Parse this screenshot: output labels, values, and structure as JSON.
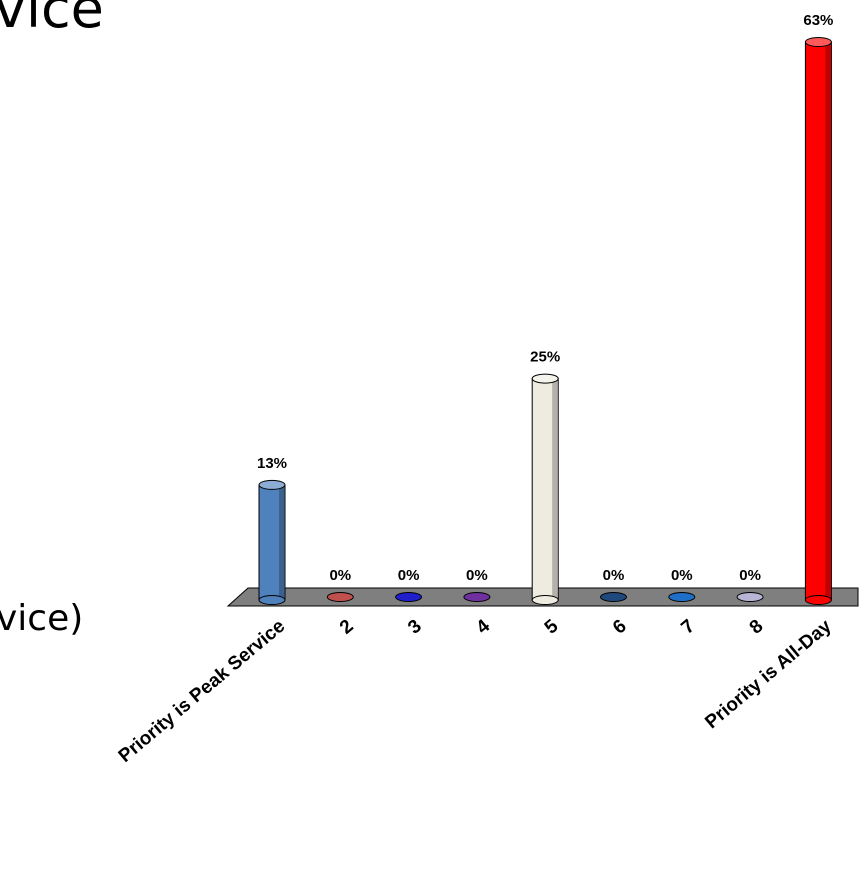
{
  "slide": {
    "title_fragment": "vice",
    "bullet_fragment": "vice)"
  },
  "chart_data": {
    "type": "bar",
    "title": "",
    "xlabel": "",
    "ylabel": "",
    "ylim": [
      0,
      63
    ],
    "grid": false,
    "legend": "none",
    "categories": [
      "Priority is Peak Service",
      "2",
      "3",
      "4",
      "5",
      "6",
      "7",
      "8",
      "Priority is All-Day"
    ],
    "values": [
      13,
      0,
      0,
      0,
      25,
      0,
      0,
      0,
      63
    ],
    "value_labels": [
      "13%",
      "0%",
      "0%",
      "0%",
      "25%",
      "0%",
      "0%",
      "0%",
      "63%"
    ],
    "colors": [
      "#4F81BD",
      "#C0504D",
      "#1F1FCC",
      "#7030A0",
      "#EEECE1",
      "#1F497D",
      "#1F6FC8",
      "#B8B4D6",
      "#FF0000"
    ],
    "floor_color": "#7F7F7F"
  }
}
